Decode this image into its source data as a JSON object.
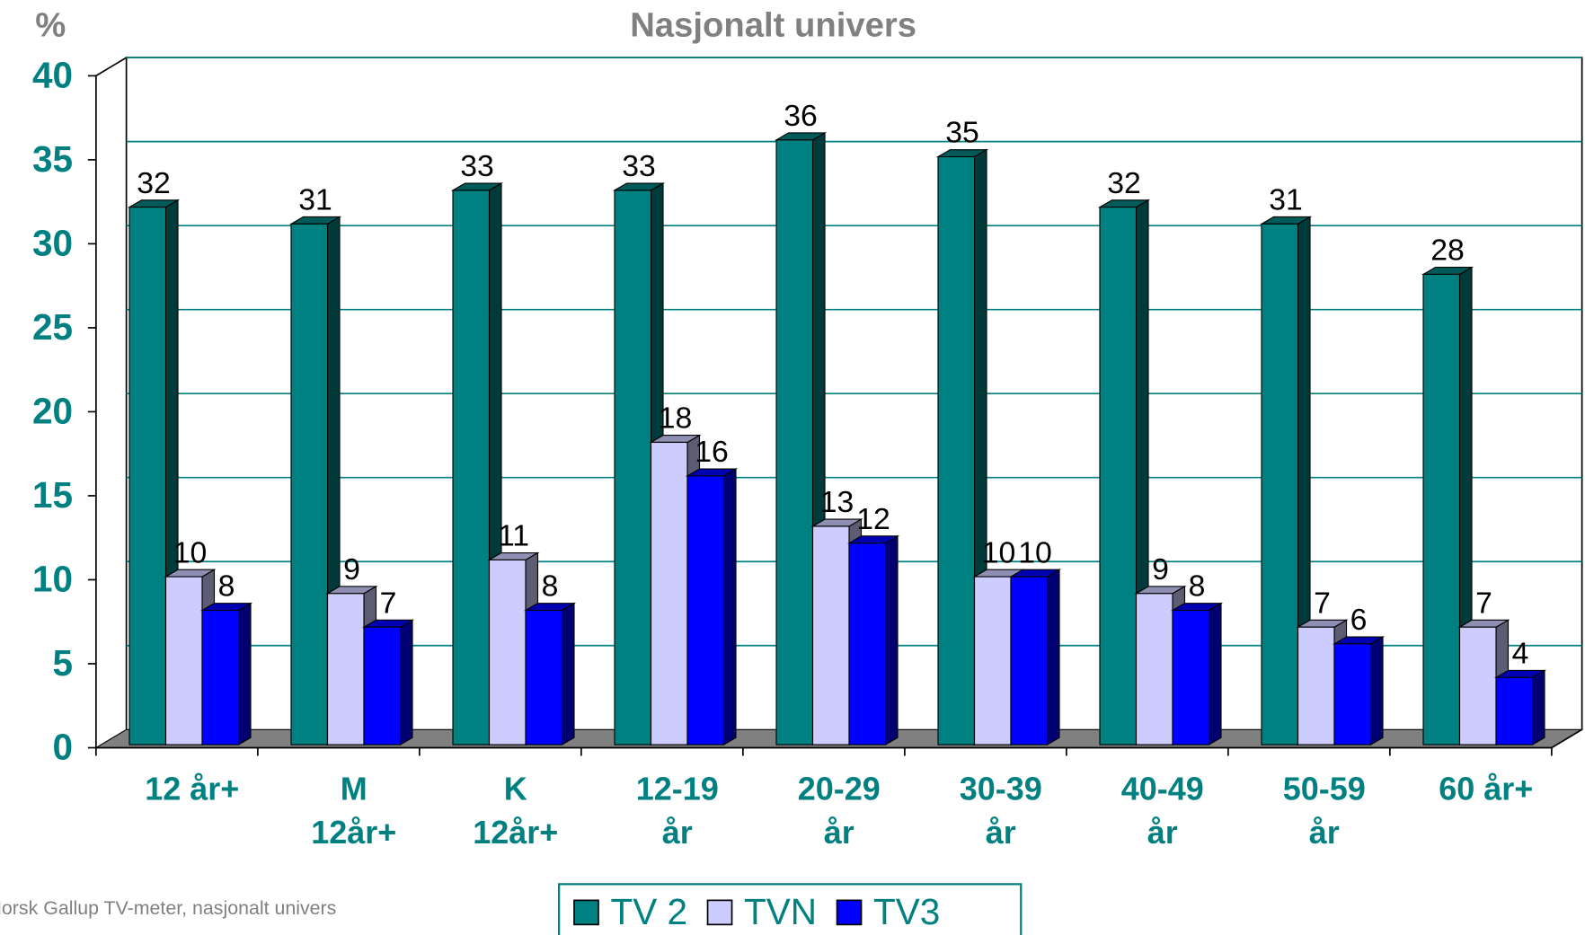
{
  "chart_data": {
    "type": "bar3d",
    "title": "Nasjonalt univers",
    "y_label": "%",
    "categories": [
      [
        "12 år+"
      ],
      [
        "M",
        "12år+"
      ],
      [
        "K",
        "12år+"
      ],
      [
        "12-19",
        "år"
      ],
      [
        "20-29",
        "år"
      ],
      [
        "30-39",
        "år"
      ],
      [
        "40-49",
        "år"
      ],
      [
        "50-59",
        "år"
      ],
      [
        "60 år+"
      ]
    ],
    "series": [
      {
        "name": "TV 2",
        "color": "#008080",
        "values": [
          32,
          31,
          33,
          33,
          36,
          35,
          32,
          31,
          28
        ]
      },
      {
        "name": "TVN",
        "color": "#ccccff",
        "values": [
          10,
          9,
          11,
          18,
          13,
          10,
          9,
          7,
          7
        ]
      },
      {
        "name": "TV3",
        "color": "#0000ff",
        "values": [
          8,
          7,
          8,
          16,
          12,
          10,
          8,
          6,
          4
        ]
      }
    ],
    "ylim": [
      0,
      40
    ],
    "yticks": [
      0,
      5,
      10,
      15,
      20,
      25,
      30,
      35,
      40
    ],
    "grid": true,
    "source": "Norsk Gallup TV-meter, nasjonalt univers"
  }
}
